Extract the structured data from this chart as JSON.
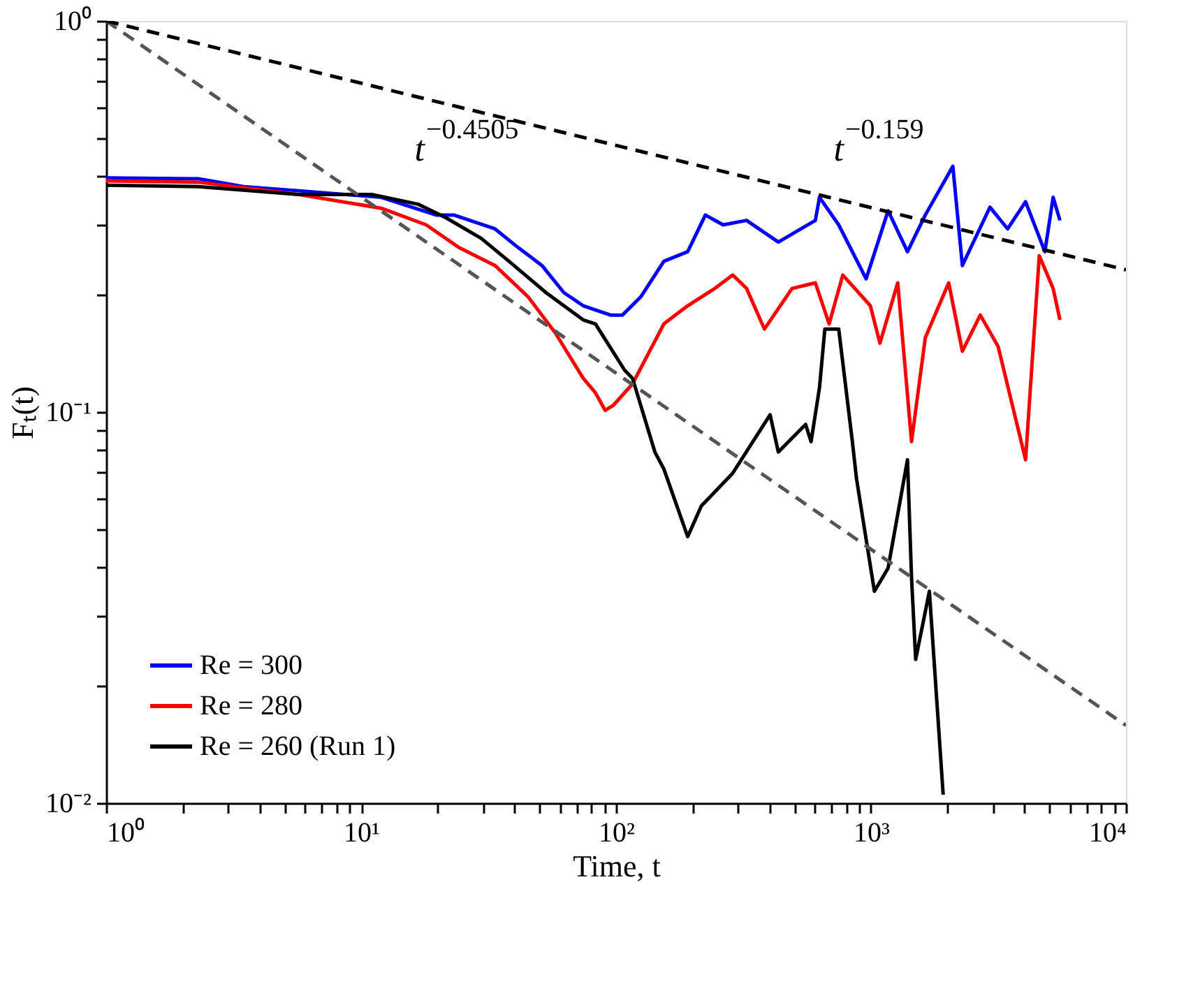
{
  "chart_data": {
    "type": "line",
    "xlabel": "Time, t",
    "ylabel": "Fₜ(t)",
    "log": "xy",
    "grid": false,
    "legend": "bottom left",
    "line_style": "solid",
    "xlim": [
      1,
      10000
    ],
    "ylim": [
      0.01,
      1
    ],
    "xticks": [
      {
        "value": 1,
        "label": "10⁰"
      },
      {
        "value": 2,
        "label": null
      },
      {
        "value": 3,
        "label": null
      },
      {
        "value": 4,
        "label": null
      },
      {
        "value": 5,
        "label": null
      },
      {
        "value": 6,
        "label": null
      },
      {
        "value": 7,
        "label": null
      },
      {
        "value": 8,
        "label": null
      },
      {
        "value": 9,
        "label": null
      },
      {
        "value": 10,
        "label": "10¹"
      },
      {
        "value": 20,
        "label": null
      },
      {
        "value": 30,
        "label": null
      },
      {
        "value": 40,
        "label": null
      },
      {
        "value": 50,
        "label": null
      },
      {
        "value": 60,
        "label": null
      },
      {
        "value": 70,
        "label": null
      },
      {
        "value": 80,
        "label": null
      },
      {
        "value": 90,
        "label": null
      },
      {
        "value": 100,
        "label": "10²"
      },
      {
        "value": 200,
        "label": null
      },
      {
        "value": 300,
        "label": null
      },
      {
        "value": 400,
        "label": null
      },
      {
        "value": 500,
        "label": null
      },
      {
        "value": 600,
        "label": null
      },
      {
        "value": 700,
        "label": null
      },
      {
        "value": 800,
        "label": null
      },
      {
        "value": 900,
        "label": null
      },
      {
        "value": 1000,
        "label": "10³"
      },
      {
        "value": 2000,
        "label": null
      },
      {
        "value": 3000,
        "label": null
      },
      {
        "value": 4000,
        "label": null
      },
      {
        "value": 5000,
        "label": null
      },
      {
        "value": 6000,
        "label": null
      },
      {
        "value": 7000,
        "label": null
      },
      {
        "value": 8000,
        "label": null
      },
      {
        "value": 9000,
        "label": null
      },
      {
        "value": 10000,
        "label": "10⁴"
      }
    ],
    "yticks": [
      {
        "value": 0.01,
        "label": "10⁻²"
      },
      {
        "value": 0.02,
        "label": null
      },
      {
        "value": 0.03,
        "label": null
      },
      {
        "value": 0.04,
        "label": null
      },
      {
        "value": 0.05,
        "label": null
      },
      {
        "value": 0.06,
        "label": null
      },
      {
        "value": 0.07,
        "label": null
      },
      {
        "value": 0.08,
        "label": null
      },
      {
        "value": 0.09,
        "label": null
      },
      {
        "value": 0.1,
        "label": "10⁻¹"
      },
      {
        "value": 0.2,
        "label": null
      },
      {
        "value": 0.3,
        "label": null
      },
      {
        "value": 0.4,
        "label": null
      },
      {
        "value": 0.5,
        "label": null
      },
      {
        "value": 0.6,
        "label": null
      },
      {
        "value": 0.7,
        "label": null
      },
      {
        "value": 0.8,
        "label": null
      },
      {
        "value": 0.9,
        "label": null
      },
      {
        "value": 1,
        "label": "10⁰"
      }
    ],
    "series": [
      {
        "name": "Re = 300",
        "color": "#0000ff",
        "x": [
          1,
          2.3,
          3.46,
          5.69,
          12,
          19.7,
          23.1,
          33.5,
          41.4,
          51.2,
          62.4,
          74.3,
          95.1,
          106,
          125,
          154,
          191,
          224,
          263,
          325,
          433,
          605,
          628,
          747,
          957,
          1167,
          1390,
          1633,
          2094,
          2282,
          2927,
          3436,
          4039,
          4808,
          5180,
          5510
        ],
        "values": [
          0.397,
          0.395,
          0.377,
          0.368,
          0.354,
          0.319,
          0.319,
          0.294,
          0.263,
          0.237,
          0.202,
          0.187,
          0.177,
          0.177,
          0.197,
          0.243,
          0.257,
          0.319,
          0.301,
          0.309,
          0.272,
          0.309,
          0.354,
          0.301,
          0.219,
          0.327,
          0.257,
          0.319,
          0.425,
          0.237,
          0.334,
          0.294,
          0.345,
          0.257,
          0.354,
          0.309
        ]
      },
      {
        "name": "Re = 280",
        "color": "#ff0000",
        "x": [
          1,
          2.3,
          5.69,
          12,
          18,
          24.3,
          33.5,
          45.2,
          57.9,
          74.3,
          83,
          90.6,
          97.5,
          116,
          154,
          191,
          244,
          287,
          325,
          382,
          490,
          605,
          685,
          775,
          994,
          1084,
          1273,
          1442,
          1633,
          2017,
          2282,
          2683,
          3153,
          4039,
          4571,
          5180,
          5510
        ],
        "values": [
          0.39,
          0.387,
          0.36,
          0.332,
          0.301,
          0.263,
          0.237,
          0.197,
          0.159,
          0.122,
          0.112,
          0.101,
          0.104,
          0.118,
          0.168,
          0.187,
          0.207,
          0.224,
          0.207,
          0.163,
          0.207,
          0.214,
          0.168,
          0.224,
          0.187,
          0.15,
          0.214,
          0.084,
          0.155,
          0.214,
          0.143,
          0.177,
          0.147,
          0.0755,
          0.251,
          0.207,
          0.172
        ]
      },
      {
        "name": "Re = 260 (Run 1)",
        "color": "#000000",
        "x": [
          1,
          2.3,
          5.69,
          11,
          16.7,
          21.5,
          29.6,
          38,
          53.1,
          74.3,
          83,
          108,
          116,
          142,
          154,
          191,
          216,
          287,
          402,
          433,
          554,
          582,
          628,
          659,
          747,
          845,
          877,
          1031,
          1167,
          1390,
          1442,
          1497,
          1694,
          1919
        ],
        "values": [
          0.38,
          0.377,
          0.36,
          0.36,
          0.34,
          0.314,
          0.278,
          0.243,
          0.202,
          0.172,
          0.168,
          0.128,
          0.122,
          0.079,
          0.0715,
          0.048,
          0.0575,
          0.0698,
          0.0984,
          0.079,
          0.093,
          0.084,
          0.1155,
          0.163,
          0.163,
          0.084,
          0.0676,
          0.0348,
          0.0399,
          0.0755,
          0.0377,
          0.0233,
          0.0348,
          0.0105
        ]
      },
      {
        "color": "#555555",
        "line_style": "dashed",
        "x": [
          1,
          10000
        ],
        "values": [
          1,
          0.0158
        ]
      },
      {
        "color": "#000000",
        "line_style": "dashed",
        "x": [
          1,
          10000
        ],
        "values": [
          1,
          0.231
        ]
      }
    ],
    "annotations": [
      "t$^{−0.4505}$",
      "t$^{−0.159}$"
    ]
  }
}
